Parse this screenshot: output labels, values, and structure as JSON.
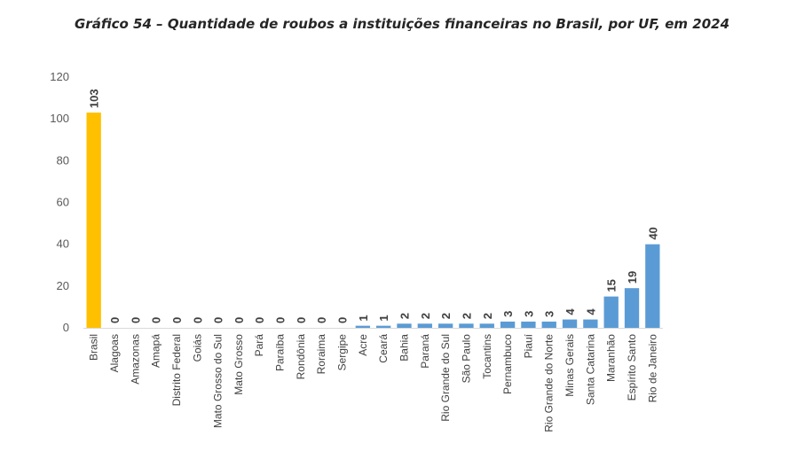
{
  "chart_data": {
    "type": "bar",
    "title": "Gráfico 54 – Quantidade de roubos a instituições financeiras no Brasil, por UF, em 2024",
    "xlabel": "",
    "ylabel": "",
    "ylim": [
      0,
      120
    ],
    "yticks": [
      0,
      20,
      40,
      60,
      80,
      100,
      120
    ],
    "grid": false,
    "legend": "none",
    "categories": [
      "Brasil",
      "Alagoas",
      "Amazonas",
      "Amapá",
      "Distrito Federal",
      "Goiás",
      "Mato Grosso do Sul",
      "Mato Grosso",
      "Pará",
      "Paraíba",
      "Rondônia",
      "Roraima",
      "Sergipe",
      "Acre",
      "Ceará",
      "Bahia",
      "Paraná",
      "Rio Grande do Sul",
      "São Paulo",
      "Tocantins",
      "Pernambuco",
      "Piauí",
      "Rio Grande do Norte",
      "Minas Gerais",
      "Santa Catarina",
      "Maranhão",
      "Espírito Santo",
      "Rio de Janeiro"
    ],
    "values": [
      103,
      0,
      0,
      0,
      0,
      0,
      0,
      0,
      0,
      0,
      0,
      0,
      0,
      1,
      1,
      2,
      2,
      2,
      2,
      2,
      3,
      3,
      3,
      4,
      4,
      15,
      19,
      40
    ],
    "colors": {
      "highlight": "#FFC000",
      "default": "#5B9BD5"
    },
    "highlight_index": 0
  }
}
